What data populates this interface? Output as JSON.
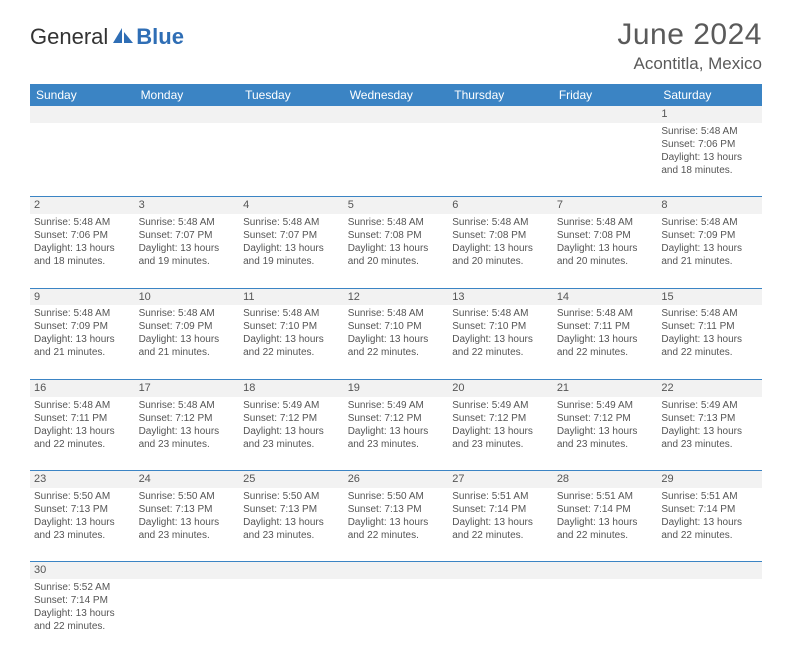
{
  "logo": {
    "textA": "General",
    "textB": "Blue"
  },
  "title": "June 2024",
  "location": "Acontitla, Mexico",
  "colors": {
    "header_bg": "#3b84c4",
    "header_fg": "#ffffff",
    "row_border": "#3b84c4",
    "blank_bg": "#f2f2f2",
    "text": "#444444",
    "title_color": "#5a5a5a"
  },
  "dayHeaders": [
    "Sunday",
    "Monday",
    "Tuesday",
    "Wednesday",
    "Thursday",
    "Friday",
    "Saturday"
  ],
  "weeks": [
    [
      null,
      null,
      null,
      null,
      null,
      null,
      {
        "n": "1",
        "rise": "5:48 AM",
        "set": "7:06 PM",
        "dl1": "13 hours",
        "dl2": "and 18 minutes."
      }
    ],
    [
      {
        "n": "2",
        "rise": "5:48 AM",
        "set": "7:06 PM",
        "dl1": "13 hours",
        "dl2": "and 18 minutes."
      },
      {
        "n": "3",
        "rise": "5:48 AM",
        "set": "7:07 PM",
        "dl1": "13 hours",
        "dl2": "and 19 minutes."
      },
      {
        "n": "4",
        "rise": "5:48 AM",
        "set": "7:07 PM",
        "dl1": "13 hours",
        "dl2": "and 19 minutes."
      },
      {
        "n": "5",
        "rise": "5:48 AM",
        "set": "7:08 PM",
        "dl1": "13 hours",
        "dl2": "and 20 minutes."
      },
      {
        "n": "6",
        "rise": "5:48 AM",
        "set": "7:08 PM",
        "dl1": "13 hours",
        "dl2": "and 20 minutes."
      },
      {
        "n": "7",
        "rise": "5:48 AM",
        "set": "7:08 PM",
        "dl1": "13 hours",
        "dl2": "and 20 minutes."
      },
      {
        "n": "8",
        "rise": "5:48 AM",
        "set": "7:09 PM",
        "dl1": "13 hours",
        "dl2": "and 21 minutes."
      }
    ],
    [
      {
        "n": "9",
        "rise": "5:48 AM",
        "set": "7:09 PM",
        "dl1": "13 hours",
        "dl2": "and 21 minutes."
      },
      {
        "n": "10",
        "rise": "5:48 AM",
        "set": "7:09 PM",
        "dl1": "13 hours",
        "dl2": "and 21 minutes."
      },
      {
        "n": "11",
        "rise": "5:48 AM",
        "set": "7:10 PM",
        "dl1": "13 hours",
        "dl2": "and 22 minutes."
      },
      {
        "n": "12",
        "rise": "5:48 AM",
        "set": "7:10 PM",
        "dl1": "13 hours",
        "dl2": "and 22 minutes."
      },
      {
        "n": "13",
        "rise": "5:48 AM",
        "set": "7:10 PM",
        "dl1": "13 hours",
        "dl2": "and 22 minutes."
      },
      {
        "n": "14",
        "rise": "5:48 AM",
        "set": "7:11 PM",
        "dl1": "13 hours",
        "dl2": "and 22 minutes."
      },
      {
        "n": "15",
        "rise": "5:48 AM",
        "set": "7:11 PM",
        "dl1": "13 hours",
        "dl2": "and 22 minutes."
      }
    ],
    [
      {
        "n": "16",
        "rise": "5:48 AM",
        "set": "7:11 PM",
        "dl1": "13 hours",
        "dl2": "and 22 minutes."
      },
      {
        "n": "17",
        "rise": "5:48 AM",
        "set": "7:12 PM",
        "dl1": "13 hours",
        "dl2": "and 23 minutes."
      },
      {
        "n": "18",
        "rise": "5:49 AM",
        "set": "7:12 PM",
        "dl1": "13 hours",
        "dl2": "and 23 minutes."
      },
      {
        "n": "19",
        "rise": "5:49 AM",
        "set": "7:12 PM",
        "dl1": "13 hours",
        "dl2": "and 23 minutes."
      },
      {
        "n": "20",
        "rise": "5:49 AM",
        "set": "7:12 PM",
        "dl1": "13 hours",
        "dl2": "and 23 minutes."
      },
      {
        "n": "21",
        "rise": "5:49 AM",
        "set": "7:12 PM",
        "dl1": "13 hours",
        "dl2": "and 23 minutes."
      },
      {
        "n": "22",
        "rise": "5:49 AM",
        "set": "7:13 PM",
        "dl1": "13 hours",
        "dl2": "and 23 minutes."
      }
    ],
    [
      {
        "n": "23",
        "rise": "5:50 AM",
        "set": "7:13 PM",
        "dl1": "13 hours",
        "dl2": "and 23 minutes."
      },
      {
        "n": "24",
        "rise": "5:50 AM",
        "set": "7:13 PM",
        "dl1": "13 hours",
        "dl2": "and 23 minutes."
      },
      {
        "n": "25",
        "rise": "5:50 AM",
        "set": "7:13 PM",
        "dl1": "13 hours",
        "dl2": "and 23 minutes."
      },
      {
        "n": "26",
        "rise": "5:50 AM",
        "set": "7:13 PM",
        "dl1": "13 hours",
        "dl2": "and 22 minutes."
      },
      {
        "n": "27",
        "rise": "5:51 AM",
        "set": "7:14 PM",
        "dl1": "13 hours",
        "dl2": "and 22 minutes."
      },
      {
        "n": "28",
        "rise": "5:51 AM",
        "set": "7:14 PM",
        "dl1": "13 hours",
        "dl2": "and 22 minutes."
      },
      {
        "n": "29",
        "rise": "5:51 AM",
        "set": "7:14 PM",
        "dl1": "13 hours",
        "dl2": "and 22 minutes."
      }
    ],
    [
      {
        "n": "30",
        "rise": "5:52 AM",
        "set": "7:14 PM",
        "dl1": "13 hours",
        "dl2": "and 22 minutes."
      },
      null,
      null,
      null,
      null,
      null,
      null
    ]
  ],
  "labels": {
    "sunrise": "Sunrise: ",
    "sunset": "Sunset: ",
    "daylight": "Daylight: "
  }
}
